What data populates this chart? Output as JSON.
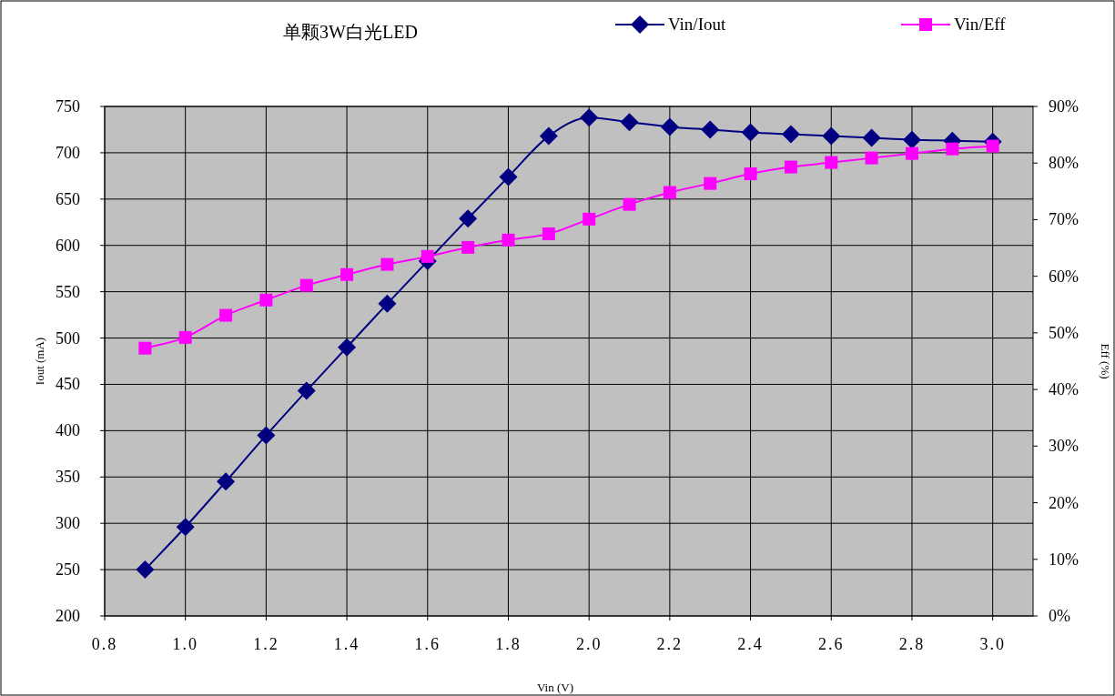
{
  "chart_data": {
    "type": "line",
    "title": "单颗3W白光LED",
    "xlabel": "Vin (V)",
    "ylabel": "Iout (mA)",
    "y2label": "Eff (%)",
    "x": [
      0.9,
      1.0,
      1.1,
      1.2,
      1.3,
      1.4,
      1.5,
      1.6,
      1.7,
      1.8,
      1.9,
      2.0,
      2.1,
      2.2,
      2.3,
      2.4,
      2.5,
      2.6,
      2.7,
      2.8,
      2.9,
      3.0
    ],
    "series": [
      {
        "name": "Vin/Iout",
        "color": "#000080",
        "marker": "diamond",
        "values": [
          250,
          296,
          345,
          395,
          443,
          490,
          537,
          583,
          629,
          674,
          718,
          738,
          733,
          728,
          725,
          722,
          720,
          718,
          716,
          714,
          713,
          712
        ]
      },
      {
        "name": "Vin/Eff",
        "color": "#ff00ff",
        "marker": "square",
        "axis": "y2",
        "values": [
          47.3,
          49.2,
          53.1,
          55.8,
          58.4,
          60.3,
          62.1,
          63.5,
          65.1,
          66.4,
          67.5,
          70.1,
          72.7,
          74.8,
          76.4,
          78.1,
          79.3,
          80.1,
          80.9,
          81.7,
          82.5,
          83.0
        ]
      }
    ],
    "xlim": [
      0.8,
      3.1
    ],
    "xticks": [
      {
        "value": 0.8,
        "label": "0.8"
      },
      {
        "value": 1.0,
        "label": "1.0"
      },
      {
        "value": 1.2,
        "label": "1.2"
      },
      {
        "value": 1.4,
        "label": "1.4"
      },
      {
        "value": 1.6,
        "label": "1.6"
      },
      {
        "value": 1.8,
        "label": "1.8"
      },
      {
        "value": 2.0,
        "label": "2.0"
      },
      {
        "value": 2.2,
        "label": "2.2"
      },
      {
        "value": 2.4,
        "label": "2.4"
      },
      {
        "value": 2.6,
        "label": "2.6"
      },
      {
        "value": 2.8,
        "label": "2.8"
      },
      {
        "value": 3.0,
        "label": "3.0"
      }
    ],
    "ylim": [
      200,
      750
    ],
    "yticks": [
      200,
      250,
      300,
      350,
      400,
      450,
      500,
      550,
      600,
      650,
      700,
      750
    ],
    "y2lim": [
      0,
      90
    ],
    "y2ticks": [
      {
        "value": 0,
        "label": "0%"
      },
      {
        "value": 10,
        "label": "10%"
      },
      {
        "value": 20,
        "label": "20%"
      },
      {
        "value": 30,
        "label": "30%"
      },
      {
        "value": 40,
        "label": "40%"
      },
      {
        "value": 50,
        "label": "50%"
      },
      {
        "value": 60,
        "label": "60%"
      },
      {
        "value": 70,
        "label": "70%"
      },
      {
        "value": 80,
        "label": "80%"
      },
      {
        "value": 90,
        "label": "90%"
      }
    ],
    "grid": true,
    "legend": "top right",
    "line_style": "solid"
  }
}
